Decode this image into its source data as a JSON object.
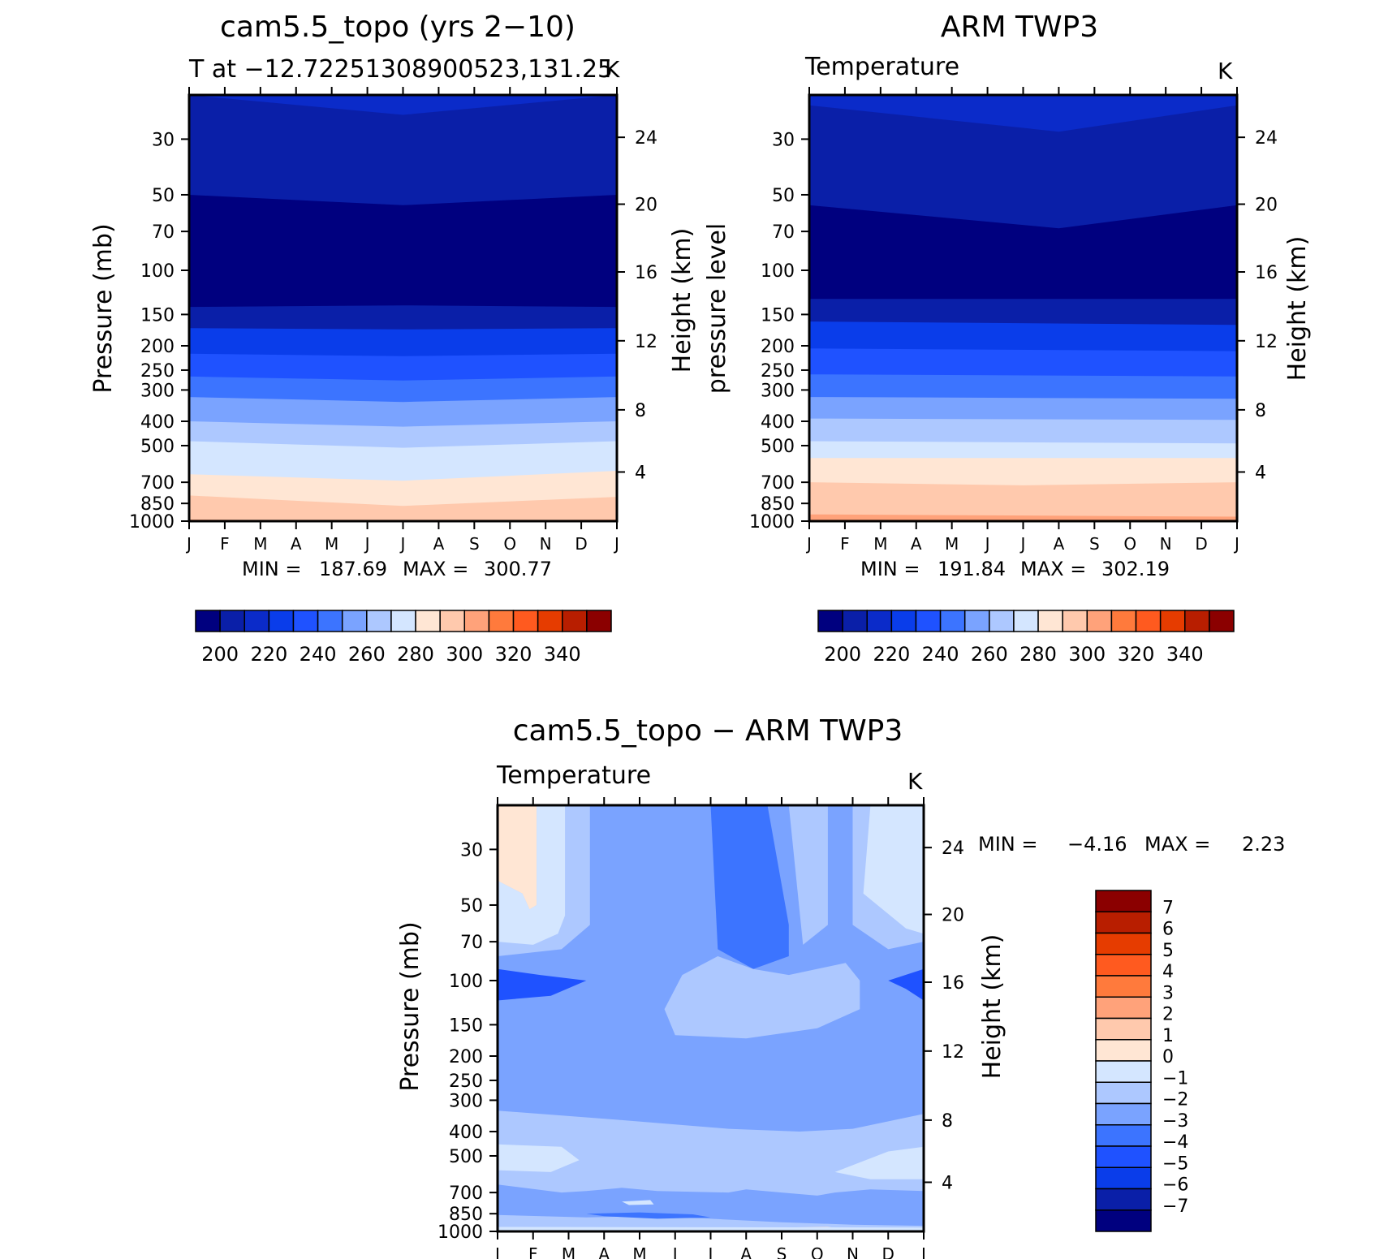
{
  "chart_data": [
    {
      "type": "heatmap",
      "title": "cam5.5_topo (yrs 2−10)",
      "subtitle": "T at −12.72251308900523,131.25",
      "units": "K",
      "ylabel": "Pressure (mb)",
      "y2label": "Height (km)",
      "x_ticks": [
        "J",
        "F",
        "M",
        "A",
        "M",
        "J",
        "J",
        "A",
        "S",
        "O",
        "N",
        "D",
        "J"
      ],
      "y_ticks": [
        30,
        50,
        70,
        100,
        150,
        200,
        250,
        300,
        400,
        500,
        700,
        850,
        1000
      ],
      "y2_ticks": [
        24,
        20,
        16,
        12,
        8,
        4
      ],
      "scale": "log-pressure",
      "stats": {
        "min_label": "MIN =",
        "min": "187.69",
        "max_label": "MAX =",
        "max": "300.77"
      },
      "colorbar_labels": [
        "200",
        "220",
        "240",
        "260",
        "280",
        "300",
        "320",
        "340"
      ],
      "band_colors": [
        "#0b2bc9",
        "#0a1fa8",
        "#00007f",
        "#0a1fa8",
        "#0a3dea",
        "#1f52ff",
        "#3c74ff",
        "#7aa3ff",
        "#adc8ff",
        "#d4e6ff",
        "#ffe6d4",
        "#ffc9ad",
        "#ffa27a",
        "#ffe6d4"
      ],
      "band_boundaries_mb": [
        [
          [
            0,
            20
          ],
          [
            6,
            24
          ],
          [
            12,
            20
          ]
        ],
        [
          [
            0,
            50
          ],
          [
            6,
            55
          ],
          [
            12,
            50
          ]
        ],
        [
          [
            0,
            140
          ],
          [
            6,
            138
          ],
          [
            12,
            140
          ]
        ],
        [
          [
            0,
            170
          ],
          [
            6,
            172
          ],
          [
            12,
            170
          ]
        ],
        [
          [
            0,
            215
          ],
          [
            6,
            220
          ],
          [
            12,
            215
          ]
        ],
        [
          [
            0,
            265
          ],
          [
            6,
            275
          ],
          [
            12,
            265
          ]
        ],
        [
          [
            0,
            320
          ],
          [
            6,
            335
          ],
          [
            12,
            320
          ]
        ],
        [
          [
            0,
            400
          ],
          [
            6,
            420
          ],
          [
            12,
            400
          ]
        ],
        [
          [
            0,
            480
          ],
          [
            6,
            510
          ],
          [
            12,
            480
          ]
        ],
        [
          [
            0,
            650
          ],
          [
            6,
            690
          ],
          [
            12,
            630
          ]
        ],
        [
          [
            0,
            790
          ],
          [
            6,
            870
          ],
          [
            12,
            800
          ]
        ],
        [
          [
            0,
            985
          ],
          [
            6,
            1000
          ],
          [
            12,
            985
          ]
        ]
      ]
    },
    {
      "type": "heatmap",
      "title": "ARM TWP3",
      "subtitle": "Temperature",
      "units": "K",
      "ylabel": "pressure level",
      "y2label": "Height (km)",
      "x_ticks": [
        "J",
        "F",
        "M",
        "A",
        "M",
        "J",
        "J",
        "A",
        "S",
        "O",
        "N",
        "D",
        "J"
      ],
      "y_ticks": [
        30,
        50,
        70,
        100,
        150,
        200,
        250,
        300,
        400,
        500,
        700,
        850,
        1000
      ],
      "y2_ticks": [
        24,
        20,
        16,
        12,
        8,
        4
      ],
      "scale": "log-pressure",
      "stats": {
        "min_label": "MIN =",
        "min": "191.84",
        "max_label": "MAX =",
        "max": "302.19"
      },
      "colorbar_labels": [
        "200",
        "220",
        "240",
        "260",
        "280",
        "300",
        "320",
        "340"
      ],
      "band_colors": [
        "#0b2bc9",
        "#0a1fa8",
        "#00007f",
        "#0a1fa8",
        "#0a3dea",
        "#1f52ff",
        "#3c74ff",
        "#7aa3ff",
        "#adc8ff",
        "#d4e6ff",
        "#ffe6d4",
        "#ffc9ad",
        "#ffa27a",
        "#ff7a3c"
      ],
      "band_boundaries_mb": [
        [
          [
            0,
            22
          ],
          [
            7,
            28
          ],
          [
            12,
            22
          ]
        ],
        [
          [
            0,
            55
          ],
          [
            7,
            68
          ],
          [
            12,
            55
          ]
        ],
        [
          [
            0,
            130
          ],
          [
            12,
            130
          ]
        ],
        [
          [
            0,
            160
          ],
          [
            12,
            165
          ]
        ],
        [
          [
            0,
            205
          ],
          [
            12,
            210
          ]
        ],
        [
          [
            0,
            260
          ],
          [
            12,
            265
          ]
        ],
        [
          [
            0,
            320
          ],
          [
            12,
            325
          ]
        ],
        [
          [
            0,
            390
          ],
          [
            12,
            395
          ]
        ],
        [
          [
            0,
            480
          ],
          [
            12,
            490
          ]
        ],
        [
          [
            0,
            560
          ],
          [
            12,
            560
          ]
        ],
        [
          [
            0,
            700
          ],
          [
            6,
            720
          ],
          [
            12,
            700
          ]
        ],
        [
          [
            0,
            940
          ],
          [
            12,
            960
          ]
        ],
        [
          [
            0,
            1000
          ],
          [
            12,
            1000
          ]
        ]
      ]
    },
    {
      "type": "heatmap",
      "title": "cam5.5_topo − ARM TWP3",
      "subtitle": "Temperature",
      "units": "K",
      "ylabel": "Pressure (mb)",
      "y2label": "Height (km)",
      "x_ticks": [
        "J",
        "F",
        "M",
        "A",
        "M",
        "J",
        "J",
        "A",
        "S",
        "O",
        "N",
        "D",
        "J"
      ],
      "y_ticks": [
        30,
        50,
        70,
        100,
        150,
        200,
        250,
        300,
        400,
        500,
        700,
        850,
        1000
      ],
      "y2_ticks": [
        24,
        20,
        16,
        12,
        8,
        4
      ],
      "scale": "log-pressure",
      "stats": {
        "min_label": "MIN =",
        "max_label": "MAX =",
        "min": "−4.16",
        "max": "2.23"
      },
      "colorbar_labels": [
        "7",
        "6",
        "5",
        "4",
        "3",
        "2",
        "1",
        "0",
        "−1",
        "−2",
        "−3",
        "−4",
        "−5",
        "−6",
        "−7"
      ],
      "colorbar_colors": [
        "#8b0000",
        "#b81e00",
        "#e63c00",
        "#ff5a1f",
        "#ff7a3c",
        "#ffa27a",
        "#ffc9ad",
        "#ffe6d4",
        "#d4e6ff",
        "#adc8ff",
        "#7aa3ff",
        "#3c74ff",
        "#1f52ff",
        "#0a3dea",
        "#0a1fa8",
        "#00007f"
      ]
    }
  ],
  "colorbar_main_colors": [
    "#00007f",
    "#0a1fa8",
    "#0b2bc9",
    "#0a3dea",
    "#1f52ff",
    "#3c74ff",
    "#7aa3ff",
    "#adc8ff",
    "#d4e6ff",
    "#ffe6d4",
    "#ffc9ad",
    "#ffa27a",
    "#ff7a3c",
    "#ff5a1f",
    "#e63c00",
    "#b81e00",
    "#8b0000"
  ]
}
